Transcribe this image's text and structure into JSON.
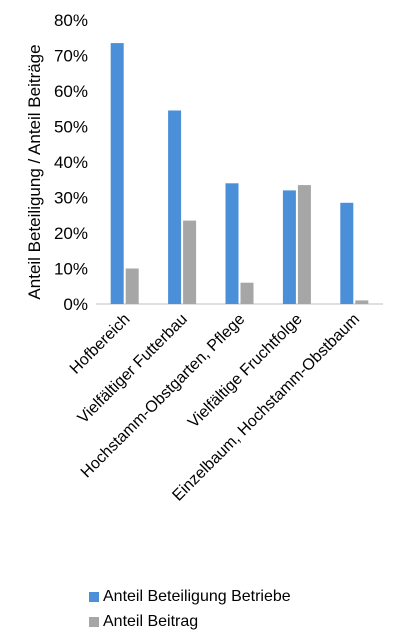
{
  "colors": {
    "series_1": "#4a8fd8",
    "series_2": "#a6a6a6",
    "axis": "#bfbfbf"
  },
  "chart_data": {
    "type": "bar",
    "title": "",
    "xlabel": "",
    "ylabel": "Anteil Beteiligung / Anteil Beiträge",
    "ylim": [
      0,
      80
    ],
    "yticks": [
      "0%",
      "10%",
      "20%",
      "30%",
      "40%",
      "50%",
      "60%",
      "70%",
      "80%"
    ],
    "grid": false,
    "legend_position": "bottom",
    "categories": [
      "Hofbereich",
      "Vielfältiger Futterbau",
      "Hochstamm-Obstgarten, Pflege",
      "Vielfältige Fruchtfolge",
      "Einzelbaum, Hochstamm-Obstbaum"
    ],
    "series": [
      {
        "name": "Anteil Beteiligung Betriebe",
        "values": [
          73.5,
          54.5,
          34,
          32,
          28.5
        ]
      },
      {
        "name": "Anteil Beitrag",
        "values": [
          10,
          23.5,
          6,
          33.5,
          1
        ]
      }
    ]
  }
}
